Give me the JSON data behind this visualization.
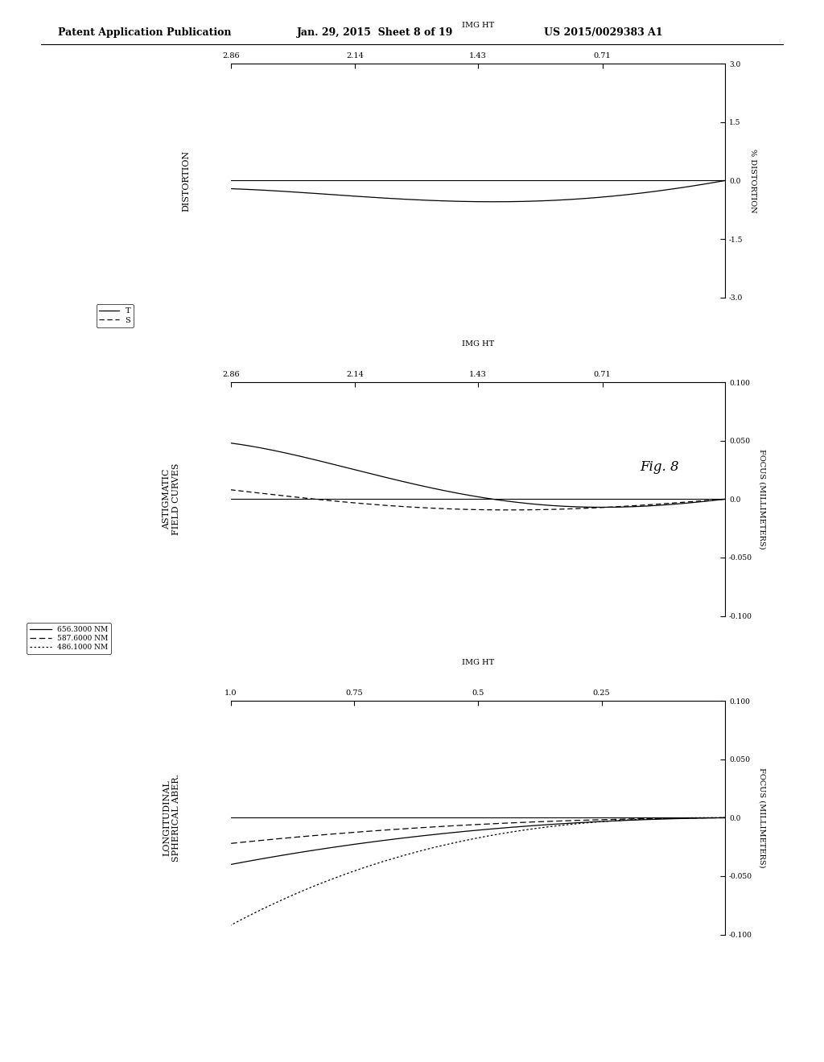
{
  "header_left": "Patent Application Publication",
  "header_mid": "Jan. 29, 2015  Sheet 8 of 19",
  "header_right": "US 2015/0029383 A1",
  "fig_label": "Fig. 8",
  "background_color": "#ffffff",
  "lsa_title": "LONGITUDINAL\nSPHERICAL ABER.",
  "lsa_ylabel": "FOCUS (MILLIMETERS)",
  "lsa_ylim": [
    -0.1,
    0.1
  ],
  "lsa_yticks": [
    -0.1,
    -0.05,
    0.0,
    0.05,
    0.1
  ],
  "lsa_xlim": [
    0.0,
    1.0
  ],
  "lsa_xticks": [
    0.25,
    0.5,
    0.75,
    1.0
  ],
  "lsa_xlabel": "IMG HT",
  "lsa_legend": [
    "656.3000 NM",
    "587.6000 NM",
    "486.1000 NM"
  ],
  "astig_title": "ASTIGMATIC\nFIELD CURVES",
  "astig_ylabel": "FOCUS (MILLIMETERS)",
  "astig_ylim": [
    -0.1,
    0.1
  ],
  "astig_yticks": [
    -0.1,
    -0.05,
    0.0,
    0.05,
    0.1
  ],
  "astig_xlim": [
    0.0,
    2.86
  ],
  "astig_xticks": [
    0.71,
    1.43,
    2.14,
    2.86
  ],
  "astig_xlabel": "IMG HT",
  "astig_legend": [
    "T",
    "S"
  ],
  "dist_title": "DISTORTION",
  "dist_ylabel": "% DISTORTION",
  "dist_ylim": [
    -3.0,
    3.0
  ],
  "dist_yticks": [
    -3.0,
    -1.5,
    0.0,
    1.5,
    3.0
  ],
  "dist_xlim": [
    0.0,
    2.86
  ],
  "dist_xticks": [
    0.71,
    1.43,
    2.14,
    2.86
  ],
  "dist_xlabel": "IMG HT"
}
